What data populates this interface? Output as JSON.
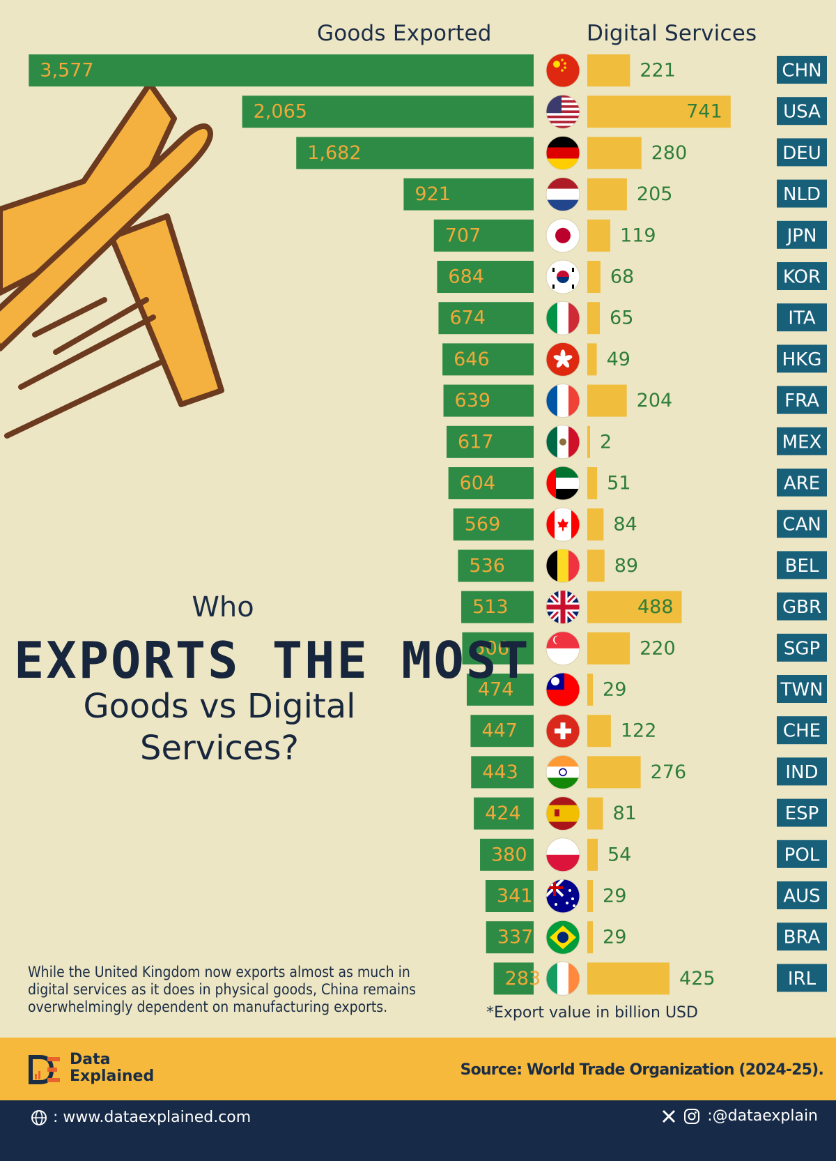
{
  "chart_data": {
    "type": "bar",
    "title": "Who EXPORTS THE MOST Goods vs Digital Services?",
    "categories": [
      "CHN",
      "USA",
      "DEU",
      "NLD",
      "JPN",
      "KOR",
      "ITA",
      "HKG",
      "FRA",
      "MEX",
      "ARE",
      "CAN",
      "BEL",
      "GBR",
      "SGP",
      "TWN",
      "CHE",
      "IND",
      "ESP",
      "POL",
      "AUS",
      "BRA",
      "IRL"
    ],
    "series": [
      {
        "name": "Goods Exported",
        "color": "#2E8B45",
        "values": [
          3577,
          2065,
          1682,
          921,
          707,
          684,
          674,
          646,
          639,
          617,
          604,
          569,
          536,
          513,
          506,
          474,
          447,
          443,
          424,
          380,
          341,
          337,
          283
        ],
        "labels": [
          "3,577",
          "2,065",
          "1,682",
          "921",
          "707",
          "684",
          "674",
          "646",
          "639",
          "617",
          "604",
          "569",
          "536",
          "513",
          "506",
          "474",
          "447",
          "443",
          "424",
          "380",
          "341",
          "337",
          "283"
        ]
      },
      {
        "name": "Digital Services",
        "color": "#F0BD3C",
        "values": [
          221,
          741,
          280,
          205,
          119,
          68,
          65,
          49,
          204,
          2,
          51,
          84,
          89,
          488,
          220,
          29,
          122,
          276,
          81,
          54,
          29,
          29,
          425
        ],
        "labels": [
          "221",
          "741",
          "280",
          "205",
          "119",
          "68",
          "65",
          "49",
          "204",
          "2",
          "51",
          "84",
          "89",
          "488",
          "220",
          "29",
          "122",
          "276",
          "81",
          "54",
          "29",
          "29",
          "425"
        ]
      }
    ],
    "flags": [
      "china",
      "united-states",
      "germany",
      "netherlands",
      "japan",
      "south-korea",
      "italy",
      "hong-kong",
      "france",
      "mexico",
      "united-arab-emirates",
      "canada",
      "belgium",
      "united-kingdom",
      "singapore",
      "taiwan",
      "switzerland",
      "india",
      "spain",
      "poland",
      "australia",
      "brazil",
      "ireland"
    ],
    "unit_note": "*Export value in billion USD"
  },
  "headers": {
    "goods": "Goods Exported",
    "digital": "Digital Services"
  },
  "title": {
    "who": "Who",
    "main": "EXPORTS THE MOST",
    "sub1": "Goods vs Digital",
    "sub2": "Services?"
  },
  "caption": "While the United Kingdom now exports almost as much in digital services as it does in physical goods, China remains overwhelmingly dependent on manufacturing exports.",
  "footer": {
    "brand_line1": "Data",
    "brand_line2": "Explained",
    "source": "Source: World Trade Organization (2024-25).",
    "website": ": www.dataexplained.com",
    "handle": ":@dataexplain"
  },
  "colors": {
    "background": "#EDE6C4",
    "goods_bar": "#2E8B45",
    "goods_label": "#F0A93A",
    "digital_bar": "#F0BD3C",
    "digital_label_inside": "#2E7D3A",
    "code_box": "#18607A",
    "footer_band": "#F6B93B",
    "footer_dark": "#172A47"
  }
}
